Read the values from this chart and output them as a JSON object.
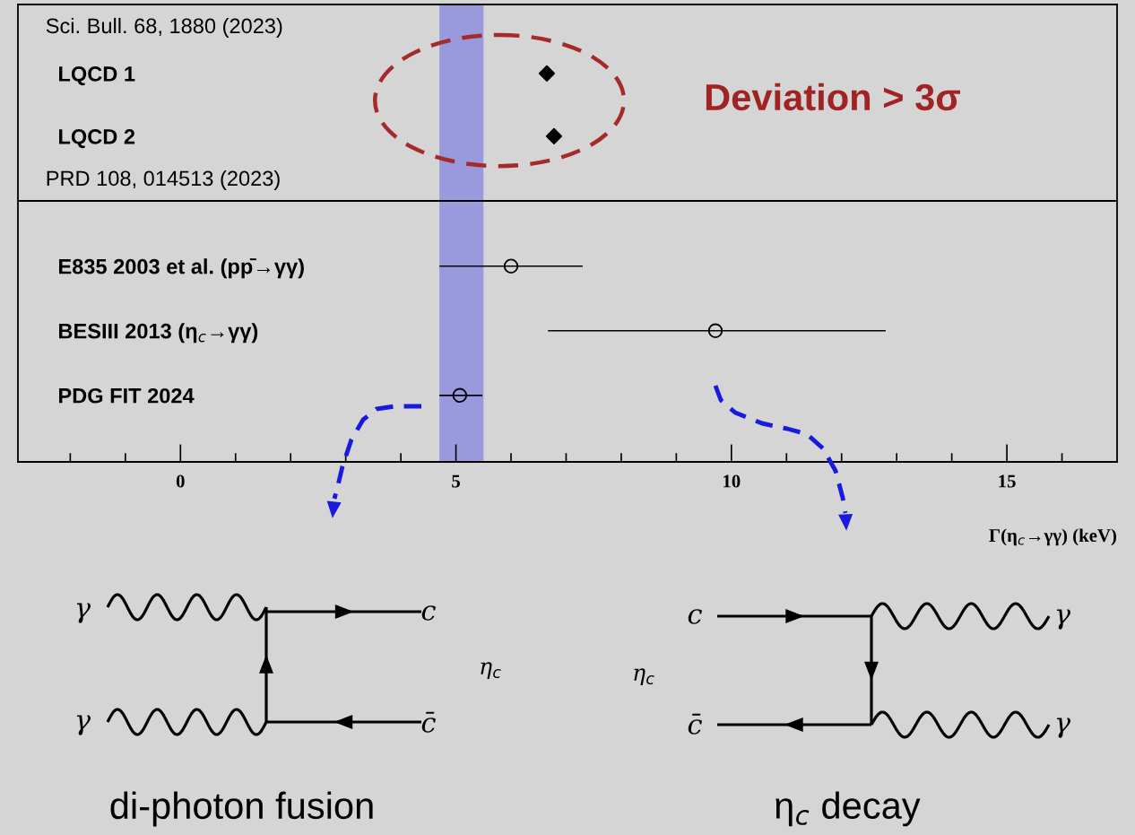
{
  "chart_data": [
    {
      "type": "scatter",
      "orientation": "horizontal",
      "categories": [
        "LQCD 1",
        "LQCD 2"
      ],
      "values": [
        6.65,
        6.78
      ],
      "color": "#000000",
      "marker": "diamond",
      "xlim": [
        -2.95,
        17
      ],
      "tick_labels": "y",
      "grid": false,
      "bands": [
        {
          "axis": "x",
          "from": 4.7,
          "to": 5.5,
          "color": "#9999dd"
        }
      ],
      "annotations": [
        "Sci. Bull. 68, 1880 (2023)",
        "PRD 108, 014513 (2023)",
        "Deviation > 3σ"
      ]
    },
    {
      "type": "scatter",
      "orientation": "horizontal",
      "categories": [
        "E835 2003 et al. (pp̄→γγ)",
        "BESIII 2013 (η$_{c}$→γγ)",
        "PDG FIT 2024"
      ],
      "values": [
        6.0,
        9.71,
        5.07
      ],
      "errors": [
        [
          4.7,
          7.3
        ],
        [
          6.67,
          12.8
        ],
        [
          4.7,
          5.48
        ]
      ],
      "color": "#000000",
      "marker": "circle",
      "xlim": [
        -2.95,
        17
      ],
      "xlabel": "Γ(η$_{c}$→γγ) (keV)",
      "grid": false,
      "xticks": [
        {
          "value": -2,
          "label": null
        },
        {
          "value": -1,
          "label": null
        },
        0,
        {
          "value": 1,
          "label": null
        },
        {
          "value": 2,
          "label": null
        },
        {
          "value": 3,
          "label": null
        },
        {
          "value": 4,
          "label": null
        },
        5,
        {
          "value": 6,
          "label": null
        },
        {
          "value": 7,
          "label": null
        },
        {
          "value": 8,
          "label": null
        },
        {
          "value": 9,
          "label": null
        },
        10,
        {
          "value": 11,
          "label": null
        },
        {
          "value": 12,
          "label": null
        },
        {
          "value": 13,
          "label": null
        },
        {
          "value": 14,
          "label": null
        },
        15,
        {
          "value": 16,
          "label": null
        }
      ],
      "bands": [
        {
          "axis": "x",
          "from": 4.7,
          "to": 5.5,
          "color": "#9999dd"
        }
      ]
    },
    {
      "type": "other",
      "title": "di-photon fusion",
      "annotations": [
        "γ",
        "γ",
        "c",
        "c̄",
        "η$_{c}$"
      ]
    },
    {
      "type": "other",
      "title": "η$_{c}$ decay",
      "annotations": [
        "c",
        "c̄",
        "η$_{c}$",
        "γ",
        "γ"
      ]
    }
  ]
}
